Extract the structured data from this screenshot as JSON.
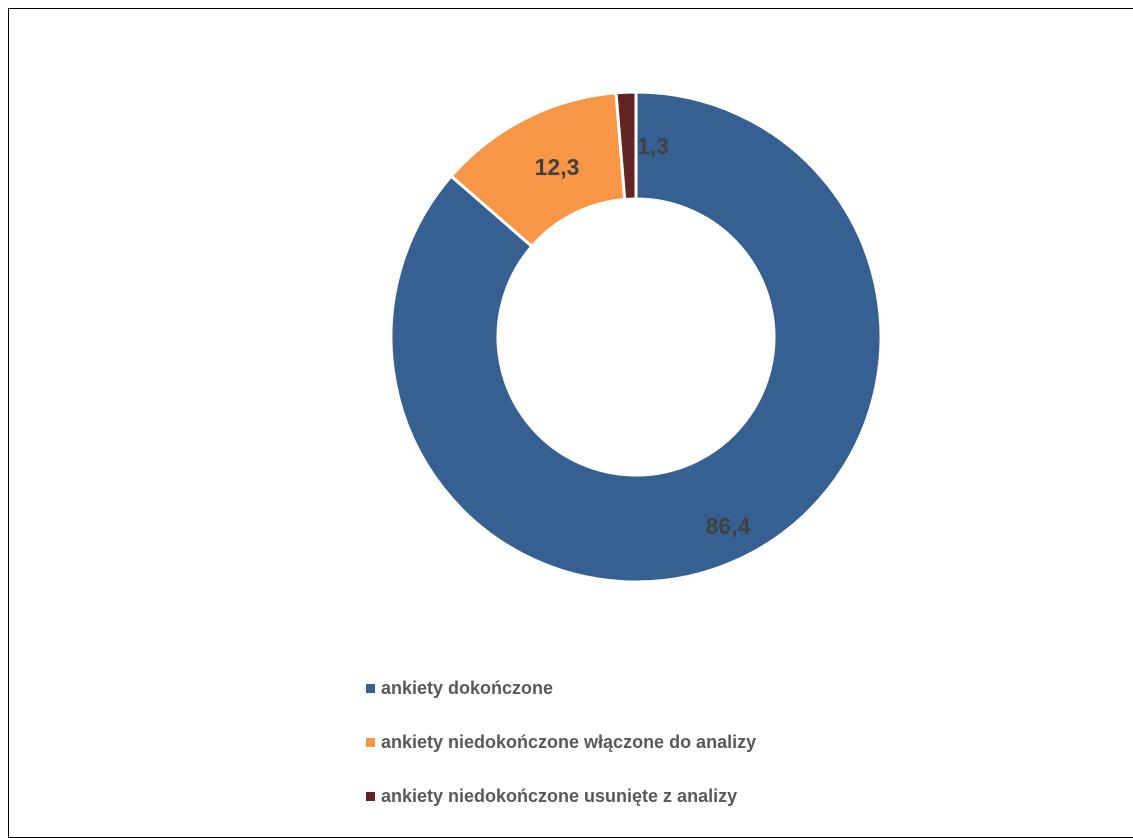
{
  "chart_data": {
    "type": "pie",
    "variant": "donut",
    "title": "",
    "categories": [
      "ankiety dokończone",
      "ankiety niedokończone włączone do analizy",
      "ankiety niedokończone usunięte z analizy"
    ],
    "values": [
      86.4,
      12.3,
      1.3
    ],
    "data_labels": [
      "86,4",
      "12,3",
      "1,3"
    ],
    "colors": [
      "#376092",
      "#F79646",
      "#632523"
    ],
    "legend_position": "bottom"
  }
}
